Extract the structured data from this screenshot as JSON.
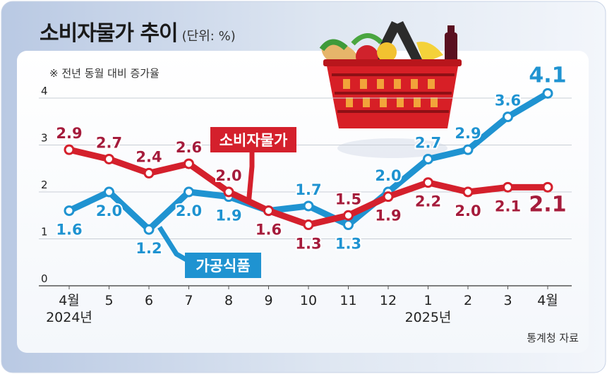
{
  "title": "소비자물가 추이",
  "unit": "(단위: %)",
  "note": "※ 전년 동월 대비 증가율",
  "source": "통계청 자료",
  "colors": {
    "cpi": "#d4202c",
    "processed_food": "#1f93d1",
    "cpi_label": "#a51c3c",
    "pf_label": "#1f93d1"
  },
  "chart_data": {
    "type": "line",
    "categories": [
      "4월",
      "5",
      "6",
      "7",
      "8",
      "9",
      "10",
      "11",
      "12",
      "1",
      "2",
      "3",
      "4월"
    ],
    "year_labels": [
      {
        "text": "2024년",
        "index": 0
      },
      {
        "text": "2025년",
        "index": 9
      }
    ],
    "yticks": [
      "0",
      "1",
      "2",
      "3",
      "4"
    ],
    "ylim": [
      0,
      4.35
    ],
    "grid": true,
    "series": [
      {
        "name": "소비자물가",
        "values": [
          2.9,
          2.7,
          2.4,
          2.6,
          2.0,
          1.6,
          1.3,
          1.5,
          1.9,
          2.2,
          2.0,
          2.1,
          2.1
        ],
        "labels": [
          "2.9",
          "2.7",
          "2.4",
          "2.6",
          "2.0",
          "1.6",
          "1.3",
          "1.5",
          "1.9",
          "2.2",
          "2.0",
          "2.1",
          "2.1"
        ]
      },
      {
        "name": "가공식품",
        "values": [
          1.6,
          2.0,
          1.2,
          2.0,
          1.9,
          1.6,
          1.7,
          1.3,
          2.0,
          2.7,
          2.9,
          3.6,
          4.1
        ],
        "labels": [
          "1.6",
          "2.0",
          "1.2",
          "2.0",
          "1.9",
          "",
          "1.7",
          "1.3",
          "2.0",
          "2.7",
          "2.9",
          "3.6",
          "4.1"
        ]
      }
    ]
  }
}
